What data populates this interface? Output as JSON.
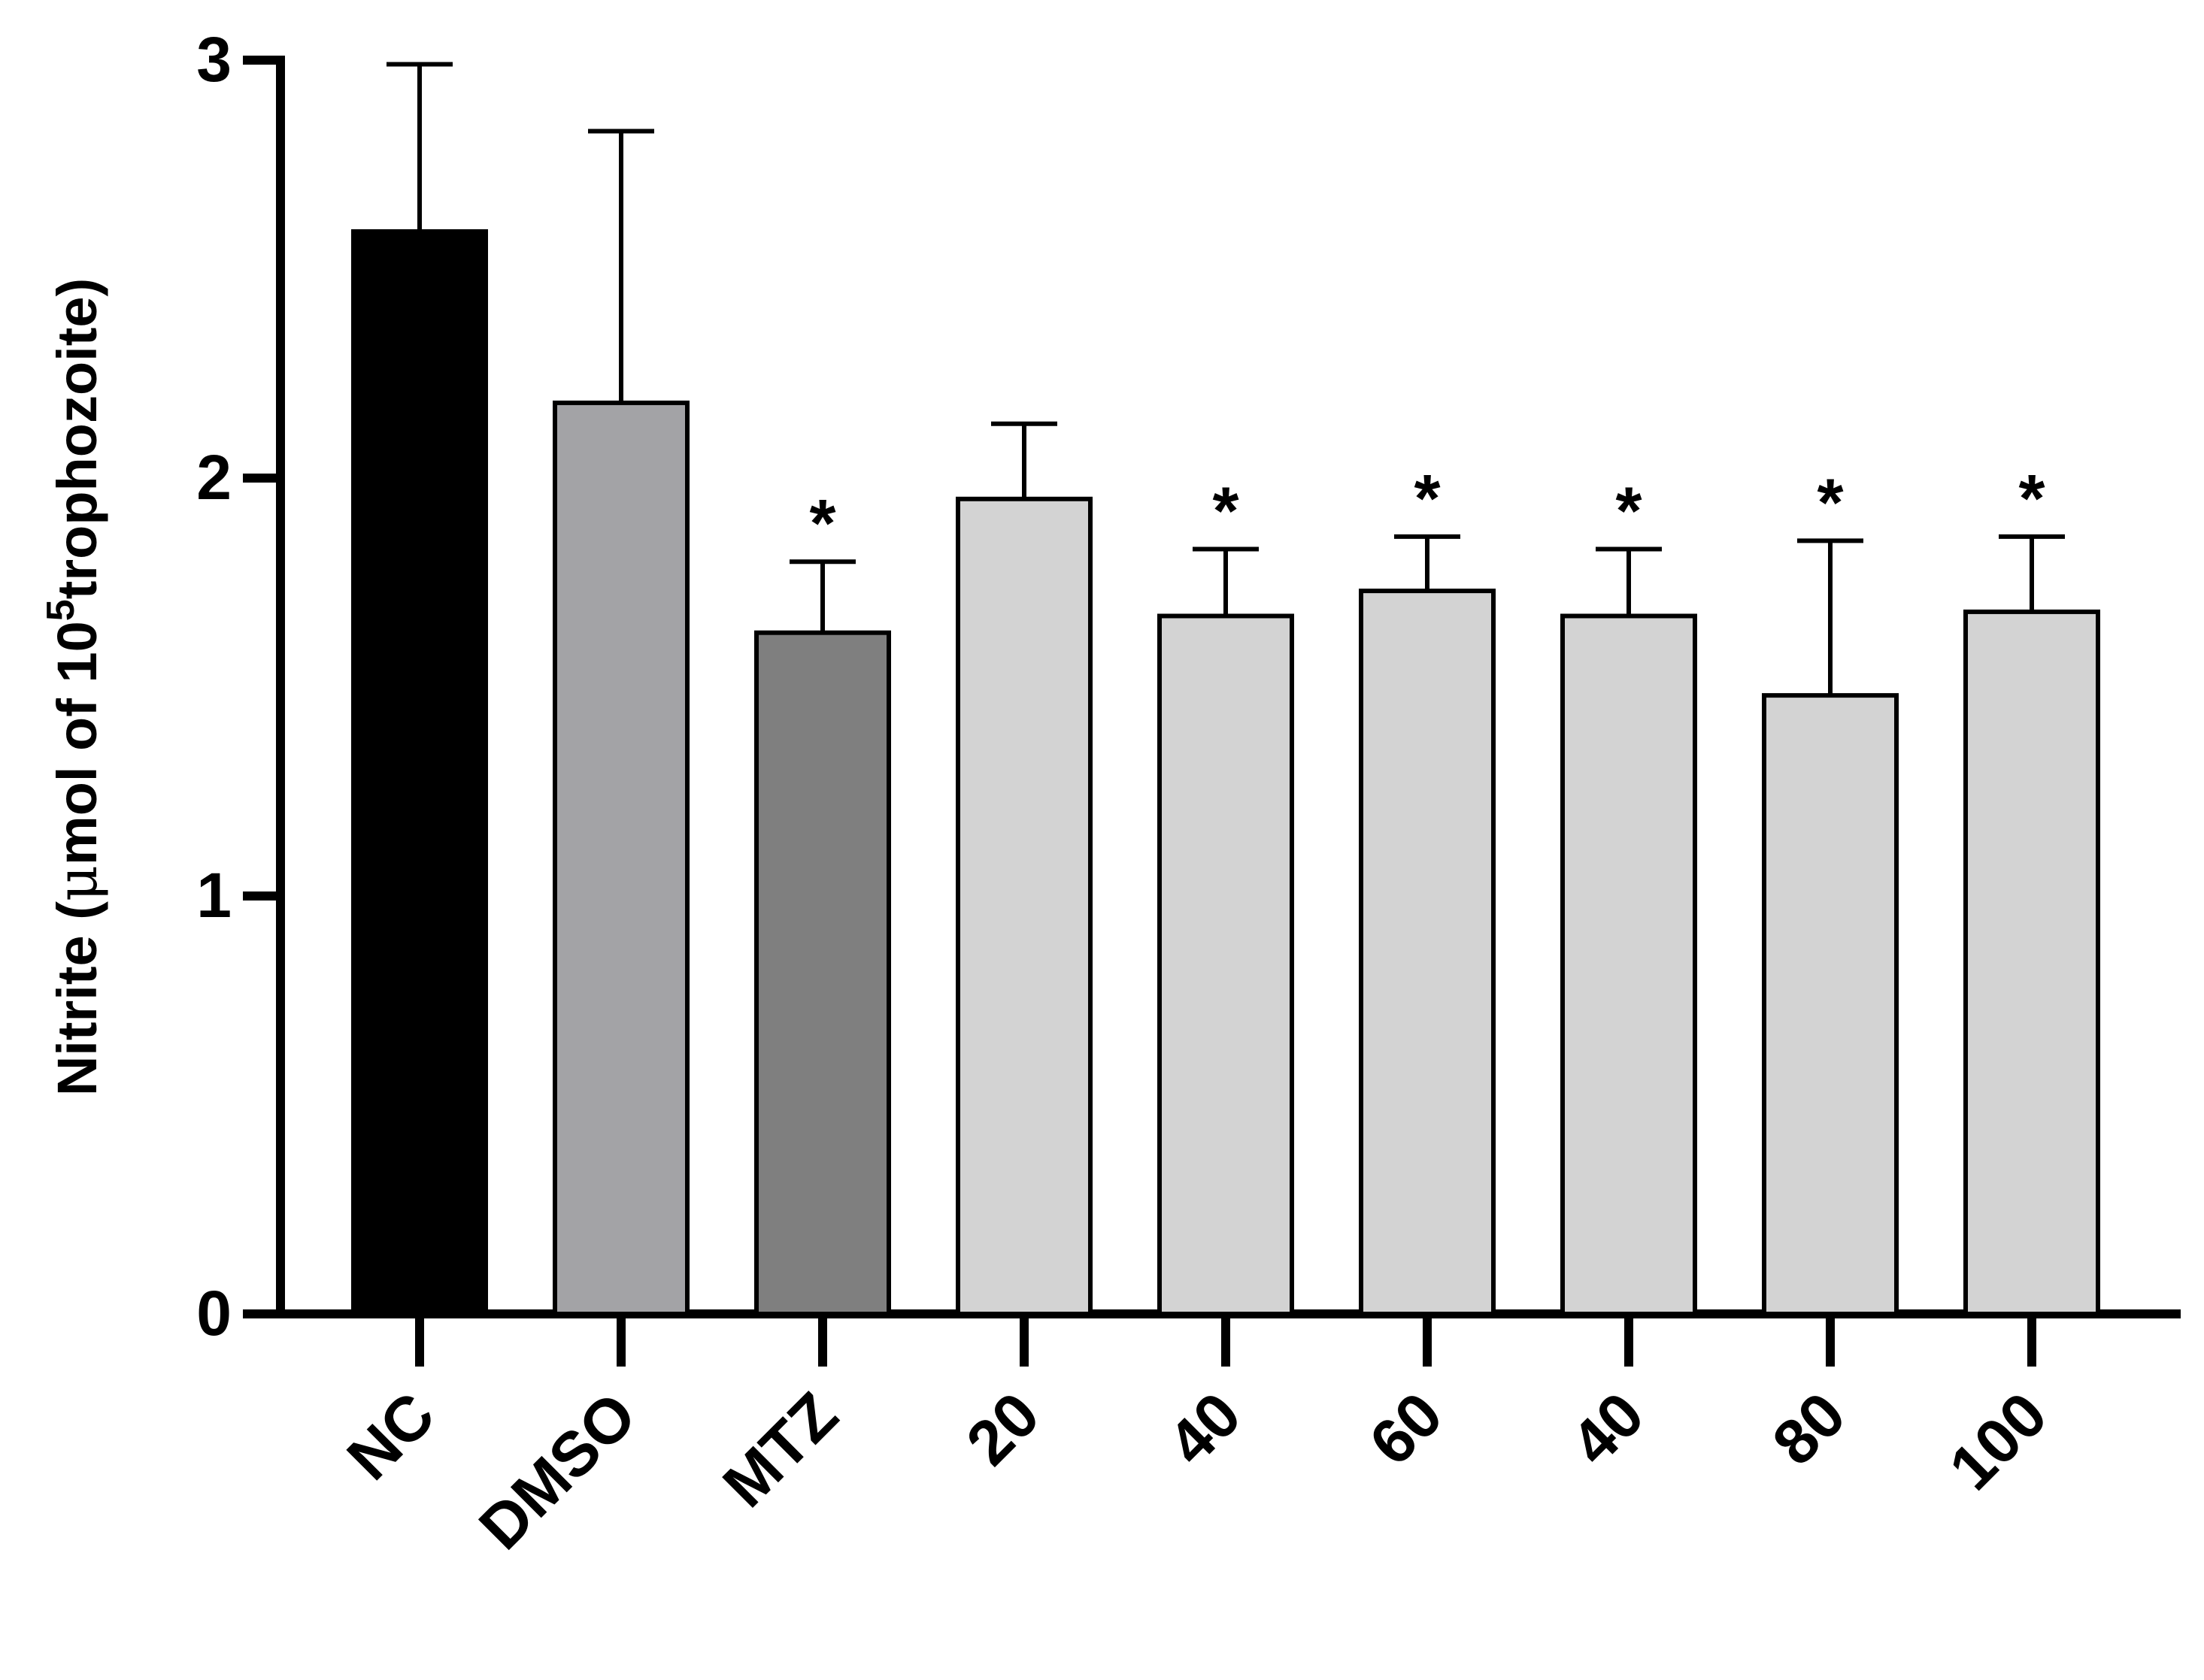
{
  "chart_data": {
    "type": "bar",
    "title": "",
    "xlabel": "",
    "ylabel_main": "Nitrite (",
    "ylabel_mu": "μ",
    "ylabel_mid": "mol of 10",
    "ylabel_sup": "5",
    "ylabel_end": "trophozoite)",
    "ylim": [
      0,
      3
    ],
    "yticks": [
      0,
      1,
      2,
      3
    ],
    "ytick_labels": [
      "0",
      "1",
      "2",
      "3"
    ],
    "categories": [
      "NC",
      "DMSO",
      "MTZ",
      "20",
      "40",
      "60",
      "40",
      "80",
      "100"
    ],
    "values": [
      2.59,
      2.18,
      1.63,
      1.95,
      1.67,
      1.73,
      1.67,
      1.48,
      1.68
    ],
    "errors": [
      0.4,
      0.65,
      0.17,
      0.18,
      0.16,
      0.13,
      0.16,
      0.37,
      0.18
    ],
    "significance": [
      "",
      "",
      "*",
      "",
      "*",
      "*",
      "*",
      "*",
      "*"
    ],
    "colors": [
      "#000000",
      "#a3a3a6",
      "#7f7f7f",
      "#d3d3d3",
      "#d3d3d3",
      "#d3d3d3",
      "#d3d3d3",
      "#d3d3d3",
      "#d3d3d3"
    ],
    "grid": false
  }
}
